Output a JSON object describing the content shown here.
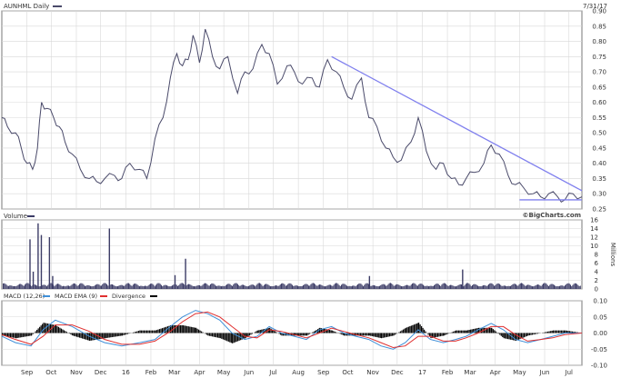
{
  "header": {
    "symbol_label": "AUNHML Daily",
    "date": "7/31/17",
    "watermark": "©BigCharts.com"
  },
  "colors": {
    "price_line": "#4a4a6a",
    "trendline": "#8080ee",
    "volume_fill": "#3c3c66",
    "macd_line": "#3f8fd8",
    "ema_line": "#e03030",
    "divergence_fill": "#000000",
    "grid": "#d8d8d8"
  },
  "chart_data": [
    {
      "type": "line",
      "title": "AUNHML Daily",
      "xlabel": "",
      "ylabel": "",
      "x_ticks": [
        "Sep",
        "Oct",
        "Nov",
        "Dec",
        "16",
        "Feb",
        "Mar",
        "Apr",
        "May",
        "Jun",
        "Jul",
        "Aug",
        "Sep",
        "Oct",
        "Nov",
        "Dec",
        "17",
        "Feb",
        "Mar",
        "Apr",
        "May",
        "Jun",
        "Jul"
      ],
      "y_ticks": [
        "0.90",
        "0.85",
        "0.80",
        "0.75",
        "0.70",
        "0.65",
        "0.60",
        "0.55",
        "0.50",
        "0.45",
        "0.40",
        "0.35",
        "0.30",
        "0.25"
      ],
      "ylim": [
        0.25,
        0.9
      ],
      "x_range": [
        "2015-08-15",
        "2017-07-31"
      ],
      "series": [
        {
          "name": "Price",
          "x": [
            "2015-08-15",
            "2015-08-22",
            "2015-09-01",
            "2015-09-08",
            "2015-09-15",
            "2015-09-22",
            "2015-09-28",
            "2015-10-03",
            "2015-10-10",
            "2015-10-18",
            "2015-10-25",
            "2015-11-01",
            "2015-11-10",
            "2015-11-20",
            "2015-12-01",
            "2015-12-10",
            "2015-12-20",
            "2016-01-01",
            "2016-01-10",
            "2016-01-20",
            "2016-02-01",
            "2016-02-10",
            "2016-02-20",
            "2016-03-01",
            "2016-03-10",
            "2016-03-18",
            "2016-03-25",
            "2016-04-01",
            "2016-04-07",
            "2016-04-15",
            "2016-04-22",
            "2016-05-01",
            "2016-05-10",
            "2016-05-20",
            "2016-06-01",
            "2016-06-10",
            "2016-06-20",
            "2016-07-01",
            "2016-07-10",
            "2016-07-20",
            "2016-08-01",
            "2016-08-10",
            "2016-08-20",
            "2016-09-01",
            "2016-09-10",
            "2016-09-20",
            "2016-10-01",
            "2016-10-10",
            "2016-10-20",
            "2016-11-01",
            "2016-11-10",
            "2016-11-20",
            "2016-12-01",
            "2016-12-10",
            "2016-12-20",
            "2017-01-01",
            "2017-01-10",
            "2017-01-20",
            "2017-02-01",
            "2017-02-10",
            "2017-02-20",
            "2017-03-01",
            "2017-03-10",
            "2017-03-20",
            "2017-04-01",
            "2017-04-10",
            "2017-04-20",
            "2017-05-01",
            "2017-05-10",
            "2017-05-20",
            "2017-06-01",
            "2017-06-10",
            "2017-06-20",
            "2017-07-01",
            "2017-07-10",
            "2017-07-20",
            "2017-07-31"
          ],
          "values": [
            0.55,
            0.52,
            0.5,
            0.45,
            0.4,
            0.38,
            0.45,
            0.6,
            0.58,
            0.55,
            0.52,
            0.47,
            0.43,
            0.38,
            0.35,
            0.34,
            0.35,
            0.36,
            0.35,
            0.4,
            0.38,
            0.35,
            0.48,
            0.55,
            0.68,
            0.76,
            0.72,
            0.74,
            0.82,
            0.73,
            0.84,
            0.75,
            0.71,
            0.75,
            0.63,
            0.7,
            0.71,
            0.79,
            0.76,
            0.66,
            0.72,
            0.7,
            0.66,
            0.68,
            0.65,
            0.74,
            0.7,
            0.65,
            0.61,
            0.68,
            0.55,
            0.52,
            0.45,
            0.42,
            0.41,
            0.47,
            0.55,
            0.44,
            0.38,
            0.4,
            0.35,
            0.33,
            0.35,
            0.37,
            0.4,
            0.46,
            0.43,
            0.36,
            0.33,
            0.32,
            0.3,
            0.29,
            0.3,
            0.29,
            0.28,
            0.3,
            0.29
          ]
        },
        {
          "name": "Trendline",
          "x": [
            "2016-09-25",
            "2017-07-31"
          ],
          "values": [
            0.75,
            0.31
          ]
        },
        {
          "name": "Support",
          "x": [
            "2017-05-15",
            "2017-07-31"
          ],
          "values": [
            0.28,
            0.28
          ]
        }
      ]
    },
    {
      "type": "bar",
      "title": "Volume",
      "ylabel": "Millions",
      "y_ticks": [
        "16",
        "14",
        "12",
        "10",
        "8",
        "6",
        "4",
        "2",
        "0"
      ],
      "ylim": [
        0,
        16
      ],
      "spikes": [
        {
          "x": "2015-09-18",
          "value": 11.5
        },
        {
          "x": "2015-09-22",
          "value": 4.0
        },
        {
          "x": "2015-09-28",
          "value": 15.2
        },
        {
          "x": "2015-10-02",
          "value": 12.5
        },
        {
          "x": "2015-10-12",
          "value": 12.0
        },
        {
          "x": "2015-10-16",
          "value": 3.0
        },
        {
          "x": "2015-12-25",
          "value": 14.0
        },
        {
          "x": "2016-03-28",
          "value": 7.0
        },
        {
          "x": "2016-03-15",
          "value": 3.2
        },
        {
          "x": "2017-03-05",
          "value": 4.5
        },
        {
          "x": "2016-11-10",
          "value": 3.0
        }
      ],
      "baseline_level": 1.0
    },
    {
      "type": "line",
      "title": "MACD",
      "y_ticks": [
        "0.10",
        "0.05",
        "0.00",
        "-0.05",
        "-0.10"
      ],
      "ylim": [
        -0.1,
        0.1
      ],
      "legend": [
        "MACD (12,26)",
        "MACD EMA (9)",
        "Divergence"
      ],
      "series": [
        {
          "name": "MACD (12,26)",
          "x": [
            "2015-08-15",
            "2015-09-01",
            "2015-09-20",
            "2015-10-05",
            "2015-10-20",
            "2015-11-10",
            "2015-12-01",
            "2015-12-20",
            "2016-01-10",
            "2016-02-01",
            "2016-02-20",
            "2016-03-10",
            "2016-03-25",
            "2016-04-10",
            "2016-04-25",
            "2016-05-10",
            "2016-05-25",
            "2016-06-10",
            "2016-06-25",
            "2016-07-10",
            "2016-07-25",
            "2016-08-10",
            "2016-08-25",
            "2016-09-10",
            "2016-09-25",
            "2016-10-10",
            "2016-10-25",
            "2016-11-10",
            "2016-11-25",
            "2016-12-10",
            "2016-12-25",
            "2017-01-10",
            "2017-01-25",
            "2017-02-10",
            "2017-02-25",
            "2017-03-10",
            "2017-03-25",
            "2017-04-10",
            "2017-04-25",
            "2017-05-10",
            "2017-05-25",
            "2017-06-10",
            "2017-06-25",
            "2017-07-10",
            "2017-07-31"
          ],
          "values": [
            -0.01,
            -0.03,
            -0.04,
            0.01,
            0.04,
            0.02,
            -0.01,
            -0.03,
            -0.04,
            -0.03,
            -0.02,
            0.02,
            0.05,
            0.07,
            0.06,
            0.04,
            0.0,
            -0.02,
            -0.01,
            0.02,
            0.0,
            -0.01,
            -0.02,
            0.01,
            0.02,
            0.0,
            -0.01,
            -0.02,
            -0.04,
            -0.05,
            -0.03,
            0.01,
            -0.02,
            -0.03,
            -0.02,
            -0.01,
            0.01,
            0.03,
            0.01,
            -0.02,
            -0.03,
            -0.02,
            -0.01,
            0.0,
            0.0
          ]
        },
        {
          "name": "MACD EMA (9)",
          "x": [
            "2015-08-15",
            "2015-09-01",
            "2015-09-20",
            "2015-10-05",
            "2015-10-20",
            "2015-11-10",
            "2015-12-01",
            "2015-12-20",
            "2016-01-10",
            "2016-02-01",
            "2016-02-20",
            "2016-03-10",
            "2016-03-25",
            "2016-04-10",
            "2016-04-25",
            "2016-05-10",
            "2016-05-25",
            "2016-06-10",
            "2016-06-25",
            "2016-07-10",
            "2016-07-25",
            "2016-08-10",
            "2016-08-25",
            "2016-09-10",
            "2016-09-25",
            "2016-10-10",
            "2016-10-25",
            "2016-11-10",
            "2016-11-25",
            "2016-12-10",
            "2016-12-25",
            "2017-01-10",
            "2017-01-25",
            "2017-02-10",
            "2017-02-25",
            "2017-03-10",
            "2017-03-25",
            "2017-04-10",
            "2017-04-25",
            "2017-05-10",
            "2017-05-25",
            "2017-06-10",
            "2017-06-25",
            "2017-07-10",
            "2017-07-31"
          ],
          "values": [
            -0.005,
            -0.02,
            -0.035,
            -0.01,
            0.025,
            0.025,
            0.005,
            -0.02,
            -0.035,
            -0.035,
            -0.025,
            0.005,
            0.035,
            0.06,
            0.065,
            0.05,
            0.02,
            -0.01,
            -0.015,
            0.01,
            0.005,
            -0.005,
            -0.015,
            0.0,
            0.015,
            0.005,
            -0.005,
            -0.015,
            -0.03,
            -0.045,
            -0.04,
            -0.01,
            -0.01,
            -0.025,
            -0.025,
            -0.015,
            0.0,
            0.02,
            0.02,
            -0.005,
            -0.025,
            -0.02,
            -0.015,
            -0.005,
            0.0
          ]
        }
      ]
    }
  ]
}
